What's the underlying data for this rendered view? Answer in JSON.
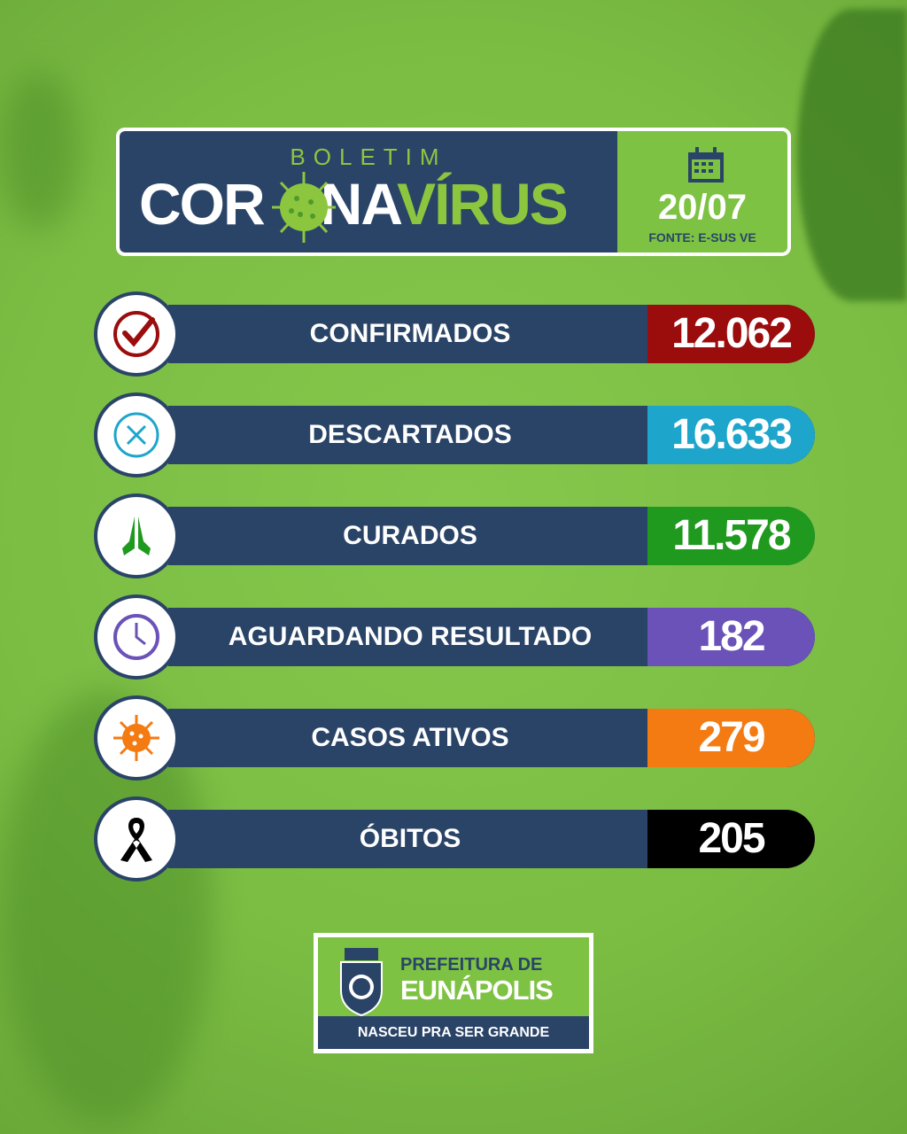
{
  "colors": {
    "background": "#7bbd43",
    "navy": "#2a4468",
    "accent_green": "#8cc63f"
  },
  "header": {
    "kicker": "BOLETIM",
    "title_white_a": "COR",
    "title_white_b": "NA",
    "title_green": "VÍRUS",
    "date": "20/07",
    "source": "FONTE: E-SUS VE",
    "calendar_icon": "calendar-icon"
  },
  "stats": [
    {
      "label": "CONFIRMADOS",
      "value": "12.062",
      "color": "#9b0c0c",
      "icon": "check-circle-icon"
    },
    {
      "label": "DESCARTADOS",
      "value": "16.633",
      "color": "#1ea5cc",
      "icon": "x-circle-icon"
    },
    {
      "label": "CURADOS",
      "value": "11.578",
      "color": "#1f9a1f",
      "icon": "praying-hands-icon"
    },
    {
      "label": "AGUARDANDO RESULTADO",
      "value": "182",
      "color": "#6a52b8",
      "icon": "clock-icon"
    },
    {
      "label": "CASOS ATIVOS",
      "value": "279",
      "color": "#f47a12",
      "icon": "virus-icon"
    },
    {
      "label": "ÓBITOS",
      "value": "205",
      "color": "#000000",
      "icon": "mourning-ribbon-icon"
    }
  ],
  "footer": {
    "line1": "PREFEITURA DE",
    "line2": "EUNÁPOLIS",
    "slogan": "NASCEU PRA SER GRANDE"
  }
}
